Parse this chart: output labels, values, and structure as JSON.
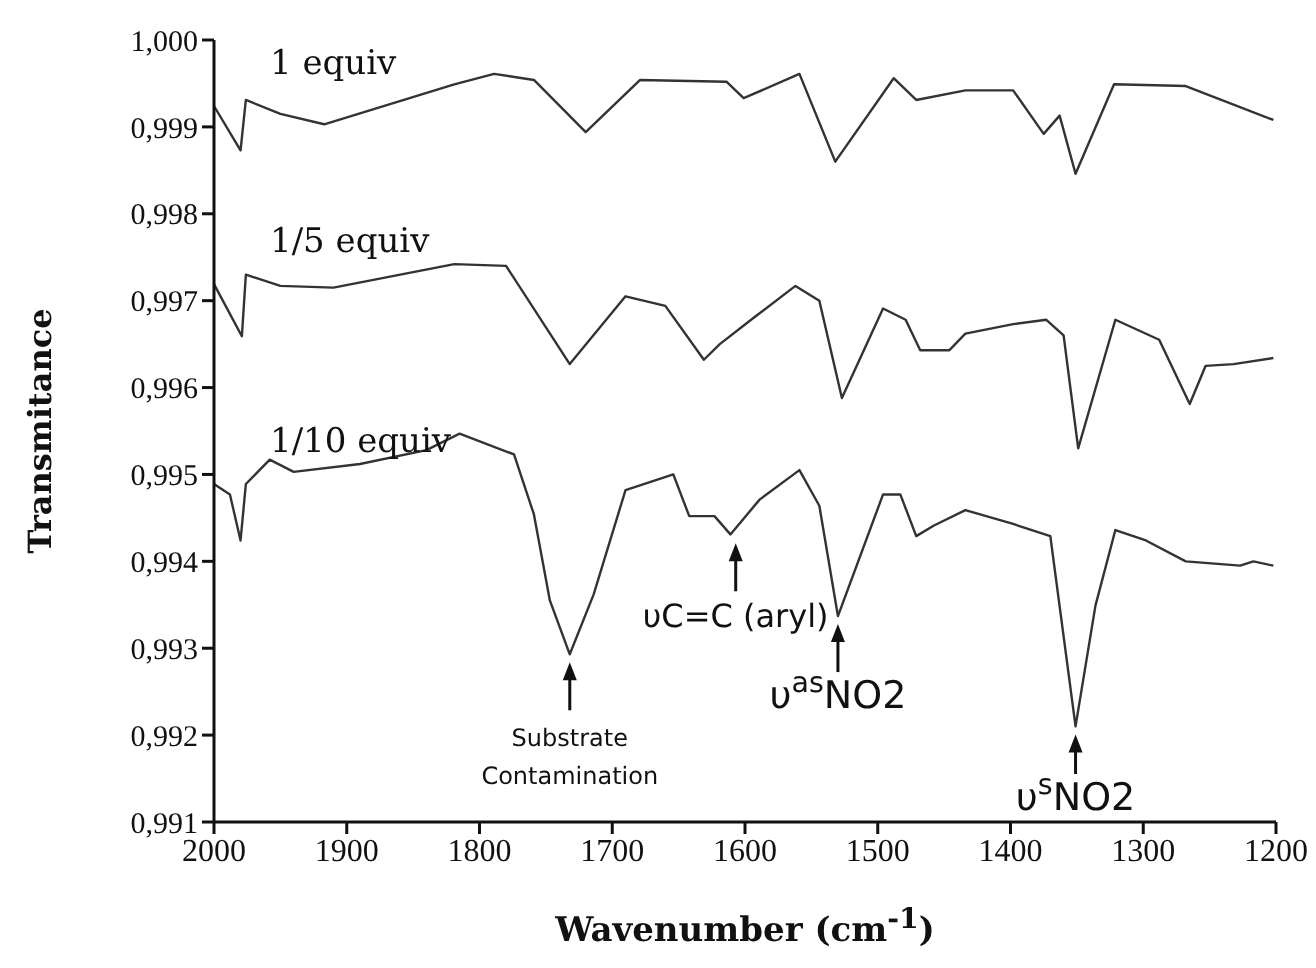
{
  "chart_data": {
    "type": "line",
    "xlabel": "Wavenumber (cm$^{-1}$)",
    "ylabel": "Transmitance",
    "xlim": [
      2000,
      1200
    ],
    "xticks": [
      2000,
      1900,
      1800,
      1700,
      1600,
      1500,
      1400,
      1300,
      1200
    ],
    "ylim": [
      0.991,
      1.0
    ],
    "yticks": [
      {
        "value": 0.991,
        "label": "0,991"
      },
      {
        "value": 0.992,
        "label": "0,992"
      },
      {
        "value": 0.993,
        "label": "0,993"
      },
      {
        "value": 0.994,
        "label": "0,994"
      },
      {
        "value": 0.995,
        "label": "0,995"
      },
      {
        "value": 0.996,
        "label": "0,996"
      },
      {
        "value": 0.997,
        "label": "0,997"
      },
      {
        "value": 0.998,
        "label": "0,998"
      },
      {
        "value": 0.999,
        "label": "0,999"
      },
      {
        "value": 1.0,
        "label": "1,000"
      }
    ],
    "grid": false,
    "legend": false,
    "marker": "none",
    "line_style": "solid",
    "series": [
      {
        "name": "1 equiv",
        "color": "#333333",
        "x": [
          2000,
          1980,
          1976,
          1950,
          1917,
          1819,
          1789,
          1759,
          1720,
          1679,
          1614,
          1601,
          1559,
          1532,
          1488,
          1471,
          1434,
          1398,
          1375,
          1363,
          1351,
          1322,
          1268,
          1202
        ],
        "values": [
          0.99924,
          0.99873,
          0.99931,
          0.99915,
          0.99903,
          0.99949,
          0.99961,
          0.99954,
          0.99894,
          0.99954,
          0.99952,
          0.99933,
          0.99961,
          0.9986,
          0.99956,
          0.99931,
          0.99942,
          0.99942,
          0.99892,
          0.99913,
          0.99846,
          0.99949,
          0.99947,
          0.99908
        ]
      },
      {
        "name": "1/5 equiv",
        "color": "#333333",
        "x": [
          2000,
          1979,
          1976,
          1950,
          1910,
          1819,
          1780,
          1732,
          1690,
          1660,
          1631,
          1619,
          1592,
          1562,
          1544,
          1527,
          1496,
          1479,
          1468,
          1446,
          1434,
          1398,
          1373,
          1360,
          1349,
          1321,
          1288,
          1265,
          1253,
          1232,
          1202
        ],
        "values": [
          0.99719,
          0.99659,
          0.9973,
          0.99717,
          0.99715,
          0.99742,
          0.9974,
          0.99627,
          0.99705,
          0.99694,
          0.99632,
          0.9965,
          0.99682,
          0.99717,
          0.997,
          0.99588,
          0.99691,
          0.99678,
          0.99643,
          0.99643,
          0.99662,
          0.99673,
          0.99678,
          0.9966,
          0.9953,
          0.99678,
          0.99655,
          0.99581,
          0.99625,
          0.99627,
          0.99634
        ]
      },
      {
        "name": "1/10 equiv",
        "color": "#333333",
        "x": [
          2000,
          1988,
          1980,
          1976,
          1958,
          1940,
          1890,
          1840,
          1815,
          1774,
          1759,
          1747,
          1732,
          1714,
          1690,
          1654,
          1642,
          1623,
          1611,
          1589,
          1559,
          1544,
          1530,
          1496,
          1483,
          1471,
          1458,
          1434,
          1398,
          1370,
          1351,
          1336,
          1321,
          1298,
          1268,
          1227,
          1217,
          1202
        ],
        "values": [
          0.99489,
          0.99477,
          0.99424,
          0.99489,
          0.99517,
          0.99503,
          0.99512,
          0.99528,
          0.99547,
          0.99523,
          0.99454,
          0.99355,
          0.99293,
          0.99362,
          0.99482,
          0.995,
          0.99452,
          0.99452,
          0.99431,
          0.99471,
          0.99505,
          0.99464,
          0.99337,
          0.99477,
          0.99477,
          0.99429,
          0.99441,
          0.99459,
          0.99443,
          0.99429,
          0.9921,
          0.99349,
          0.99436,
          0.99424,
          0.994,
          0.99395,
          0.994,
          0.99395
        ]
      }
    ],
    "annotations": [
      {
        "text": "Substrate Contamination",
        "x": 1732,
        "y": 0.99293
      },
      {
        "text": "υC=C (aryl)",
        "x": 1607,
        "y": 0.9943
      },
      {
        "text": "υ$^{as}$NO2",
        "x": 1530,
        "y": 0.99337
      },
      {
        "text": "υ$^{s}$NO2",
        "x": 1351,
        "y": 0.9921
      }
    ]
  }
}
